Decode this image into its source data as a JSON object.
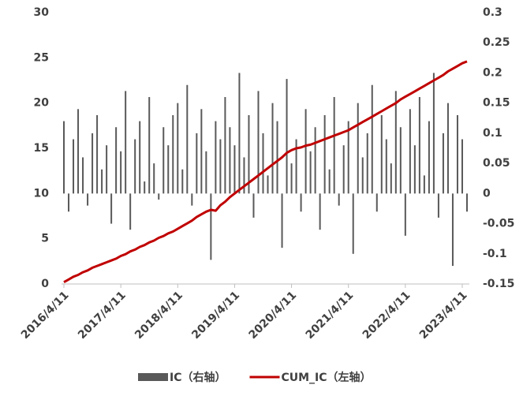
{
  "chart_data": {
    "type": "bar",
    "categories": [
      "2016/4/11",
      null,
      null,
      null,
      null,
      null,
      null,
      null,
      null,
      null,
      null,
      null,
      "2017/4/11",
      null,
      null,
      null,
      null,
      null,
      null,
      null,
      null,
      null,
      null,
      null,
      "2018/4/11",
      null,
      null,
      null,
      null,
      null,
      null,
      null,
      null,
      null,
      null,
      null,
      "2019/4/11",
      null,
      null,
      null,
      null,
      null,
      null,
      null,
      null,
      null,
      null,
      null,
      "2020/4/11",
      null,
      null,
      null,
      null,
      null,
      null,
      null,
      null,
      null,
      null,
      null,
      "2021/4/11",
      null,
      null,
      null,
      null,
      null,
      null,
      null,
      null,
      null,
      null,
      null,
      "2022/4/11",
      null,
      null,
      null,
      null,
      null,
      null,
      null,
      null,
      null,
      null,
      null,
      "2023/4/11",
      null
    ],
    "series": [
      {
        "name": "IC（右轴）",
        "type": "bar",
        "axis": "y2",
        "color": "#595959",
        "values": [
          0.12,
          -0.03,
          0.09,
          0.14,
          0.06,
          -0.02,
          0.1,
          0.13,
          0.04,
          0.08,
          -0.05,
          0.11,
          0.07,
          0.17,
          -0.06,
          0.09,
          0.12,
          0.02,
          0.16,
          0.05,
          -0.01,
          0.11,
          0.08,
          0.13,
          0.15,
          0.04,
          0.18,
          -0.02,
          0.1,
          0.14,
          0.07,
          -0.11,
          0.12,
          0.09,
          0.16,
          0.11,
          0.08,
          0.2,
          0.06,
          0.13,
          -0.04,
          0.17,
          0.1,
          0.03,
          0.15,
          0.12,
          -0.09,
          0.19,
          0.05,
          0.09,
          -0.03,
          0.14,
          0.07,
          0.11,
          -0.06,
          0.13,
          0.04,
          0.16,
          -0.02,
          0.08,
          0.12,
          -0.1,
          0.15,
          0.06,
          0.1,
          0.18,
          -0.03,
          0.13,
          0.09,
          0.05,
          0.17,
          0.11,
          -0.07,
          0.14,
          0.08,
          0.16,
          0.03,
          0.12,
          0.2,
          -0.04,
          0.1,
          0.15,
          -0.12,
          0.13,
          0.09,
          -0.03
        ]
      },
      {
        "name": "CUM_IC（左轴）",
        "type": "line",
        "color": "#c00000",
        "values": [
          0.2,
          0.5,
          0.8,
          1.0,
          1.3,
          1.5,
          1.8,
          2.0,
          2.2,
          2.4,
          2.6,
          2.8,
          3.1,
          3.3,
          3.6,
          3.8,
          4.1,
          4.3,
          4.6,
          4.8,
          5.1,
          5.3,
          5.6,
          5.8,
          6.1,
          6.4,
          6.7,
          7.0,
          7.4,
          7.7,
          8.0,
          8.2,
          8.1,
          8.7,
          9.1,
          9.6,
          10.0,
          10.4,
          10.8,
          11.2,
          11.6,
          12.0,
          12.4,
          12.8,
          13.2,
          13.6,
          14.0,
          14.5,
          14.8,
          15.0,
          15.1,
          15.3,
          15.4,
          15.6,
          15.8,
          16.0,
          16.2,
          16.4,
          16.6,
          16.8,
          17.0,
          17.3,
          17.6,
          17.9,
          18.2,
          18.5,
          18.8,
          19.1,
          19.4,
          19.7,
          20.0,
          20.4,
          20.7,
          21.0,
          21.3,
          21.6,
          21.9,
          22.2,
          22.5,
          22.8,
          23.1,
          23.5,
          23.8,
          24.1,
          24.4,
          24.6
        ]
      }
    ],
    "ylim": [
      0,
      30
    ],
    "yticks": [
      0,
      5,
      10,
      15,
      20,
      25,
      30
    ],
    "y2lim": [
      -0.15,
      0.3
    ],
    "y2ticks": [
      -0.15,
      -0.1,
      -0.05,
      0,
      0.05,
      0.1,
      0.15,
      0.2,
      0.25,
      0.3
    ],
    "grid": false
  }
}
